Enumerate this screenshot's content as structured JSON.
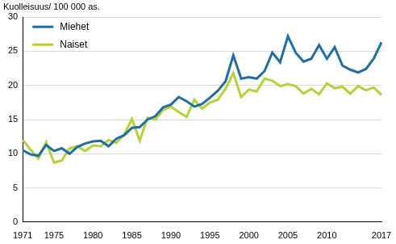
{
  "chart_data": {
    "type": "line",
    "y_label": "Kuolleisuus/ 100 000 as.",
    "categories": [
      "1971",
      null,
      null,
      null,
      "1975",
      null,
      null,
      null,
      null,
      "1980",
      null,
      null,
      null,
      null,
      "1985",
      null,
      null,
      null,
      null,
      "1990",
      null,
      null,
      null,
      null,
      "1995",
      null,
      null,
      null,
      null,
      "2000",
      null,
      null,
      null,
      null,
      "2005",
      null,
      null,
      null,
      null,
      "2010",
      null,
      null,
      null,
      null,
      null,
      null,
      "2017"
    ],
    "series": [
      {
        "name": "Miehet",
        "color": "#1f6ea8",
        "values": [
          10.5,
          9.9,
          9.7,
          11.3,
          10.4,
          10.8,
          10.0,
          11.0,
          11.5,
          11.8,
          11.9,
          11.1,
          12.2,
          12.7,
          13.8,
          13.9,
          15.0,
          15.5,
          16.8,
          17.2,
          18.3,
          17.7,
          16.9,
          17.3,
          18.2,
          19.2,
          20.6,
          24.4,
          21.0,
          21.2,
          21.0,
          22.1,
          24.8,
          23.4,
          27.2,
          24.8,
          23.5,
          23.9,
          25.9,
          23.9,
          25.6,
          22.9,
          22.3,
          21.9,
          22.4,
          23.9,
          26.3
        ]
      },
      {
        "name": "Naiset",
        "color": "#b4d334",
        "values": [
          12.0,
          10.6,
          9.3,
          11.7,
          8.7,
          9.0,
          10.8,
          11.1,
          10.4,
          11.2,
          11.1,
          12.0,
          11.6,
          12.8,
          15.1,
          11.9,
          15.3,
          15.0,
          16.4,
          16.9,
          16.1,
          15.4,
          17.9,
          16.6,
          17.5,
          17.9,
          19.5,
          21.8,
          18.3,
          19.4,
          19.1,
          21.0,
          20.7,
          19.9,
          20.2,
          19.9,
          18.8,
          19.5,
          18.7,
          20.3,
          19.6,
          19.8,
          18.8,
          19.9,
          19.3,
          19.7,
          18.6
        ]
      }
    ],
    "ylim": [
      0,
      30
    ],
    "yticks": [
      0,
      5,
      10,
      15,
      20,
      25,
      30
    ],
    "grid": true,
    "legend": "upper left"
  }
}
